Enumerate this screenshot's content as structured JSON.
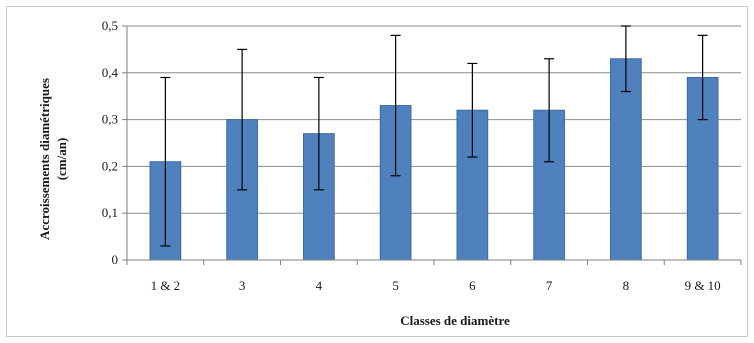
{
  "chart_data": {
    "type": "bar",
    "xlabel": "Classes de diamètre",
    "ylabel_lines": [
      "Accroissements diamétriques",
      "(cm/an)"
    ],
    "categories": [
      "1 & 2",
      "3",
      "4",
      "5",
      "6",
      "7",
      "8",
      "9 & 10"
    ],
    "values": [
      0.21,
      0.3,
      0.27,
      0.33,
      0.32,
      0.32,
      0.43,
      0.39
    ],
    "error_upper": [
      0.39,
      0.45,
      0.39,
      0.48,
      0.42,
      0.43,
      0.5,
      0.48
    ],
    "error_lower": [
      0.03,
      0.15,
      0.15,
      0.18,
      0.22,
      0.21,
      0.36,
      0.3
    ],
    "ylim": [
      0,
      0.5
    ],
    "yticks": [
      0,
      0.1,
      0.2,
      0.3,
      0.4,
      0.5
    ],
    "ytick_labels": [
      "0",
      "0,1",
      "0,2",
      "0,3",
      "0,4",
      "0,5"
    ],
    "grid": true,
    "bar_color": "#4f81bd",
    "bar_edge_color": "#3a6aa5",
    "grid_color": "#8c8c8c",
    "axis_color": "#7f7f7f",
    "error_bar_color": "#000000"
  }
}
